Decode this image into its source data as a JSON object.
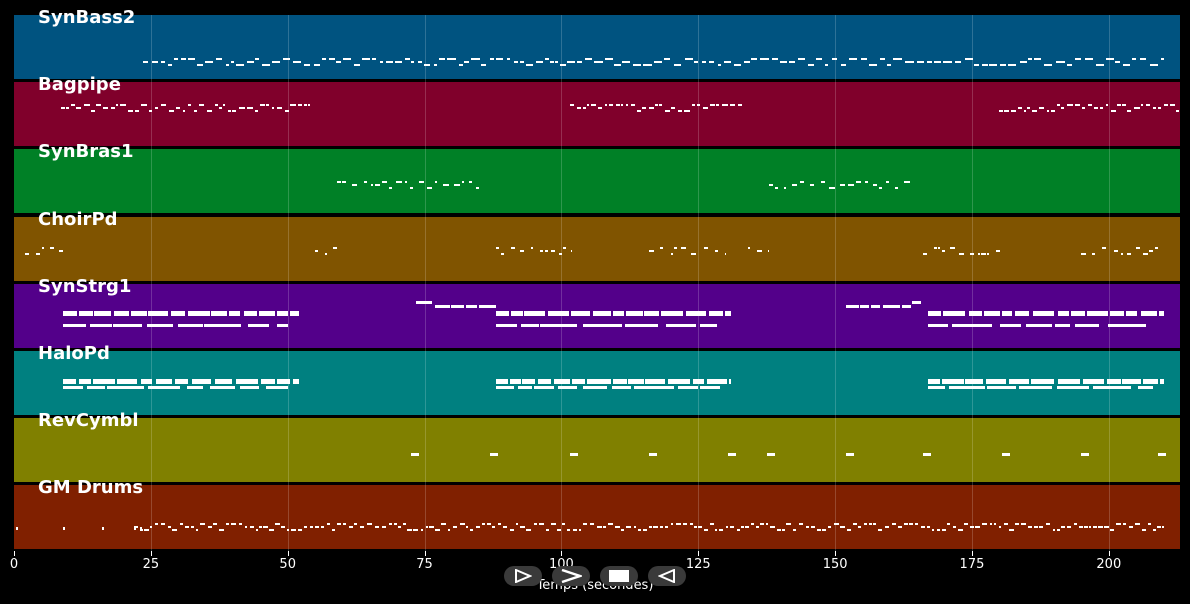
{
  "tracks": [
    {
      "name": "SynBass2",
      "color": "#005380"
    },
    {
      "name": "Bagpipe",
      "color": "#80002b"
    },
    {
      "name": "SynBras1",
      "color": "#008026"
    },
    {
      "name": "ChoirPd",
      "color": "#805400"
    },
    {
      "name": "SynStrg1",
      "color": "#53008a"
    },
    {
      "name": "HaloPd",
      "color": "#008080"
    },
    {
      "name": "RevCymbl",
      "color": "#808000"
    },
    {
      "name": "GM Drums",
      "color": "#802000"
    }
  ],
  "axis": {
    "xlabel": "Temps (secondes)",
    "xlim": [
      0,
      213
    ],
    "ticks": [
      "0",
      "25",
      "50",
      "75",
      "100",
      "125",
      "150",
      "175",
      "200"
    ],
    "tick_values": [
      0,
      25,
      50,
      75,
      100,
      125,
      150,
      175,
      200
    ]
  },
  "controls": [
    {
      "name": "play-button",
      "icon": "play-outline-icon"
    },
    {
      "name": "forward-button",
      "icon": "chevron-right-icon"
    },
    {
      "name": "stop-button",
      "icon": "stop-icon"
    },
    {
      "name": "back-button",
      "icon": "play-reverse-icon"
    }
  ]
}
